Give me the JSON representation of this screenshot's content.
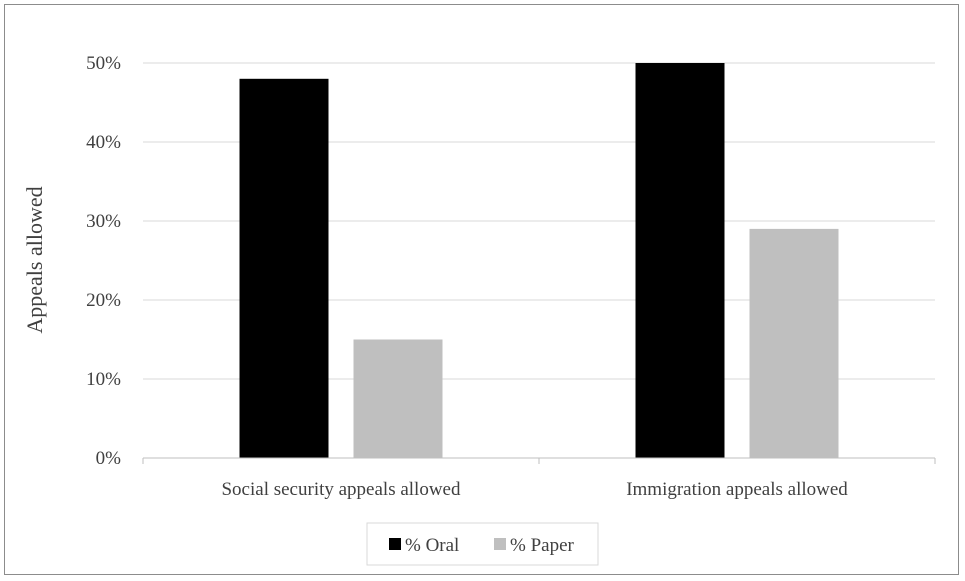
{
  "chart_data": {
    "type": "bar",
    "categories": [
      "Social security appeals allowed",
      "Immigration appeals allowed"
    ],
    "series": [
      {
        "name": "% Oral",
        "values": [
          48,
          50
        ],
        "color": "#000000"
      },
      {
        "name": "% Paper",
        "values": [
          15,
          29
        ],
        "color": "#bfbfbf"
      }
    ],
    "ylabel": "Appeals allowed",
    "xlabel": "",
    "ylim": [
      0,
      50
    ],
    "yticks": [
      0,
      10,
      20,
      30,
      40,
      50
    ],
    "ytick_labels": [
      "0%",
      "10%",
      "20%",
      "30%",
      "40%",
      "50%"
    ],
    "grid": true,
    "legend_position": "bottom-center",
    "colors": {
      "gridline": "#d9d9d9",
      "axis": "#bfbfbf",
      "frame": "#8c8c8c",
      "text": "#404040"
    }
  }
}
